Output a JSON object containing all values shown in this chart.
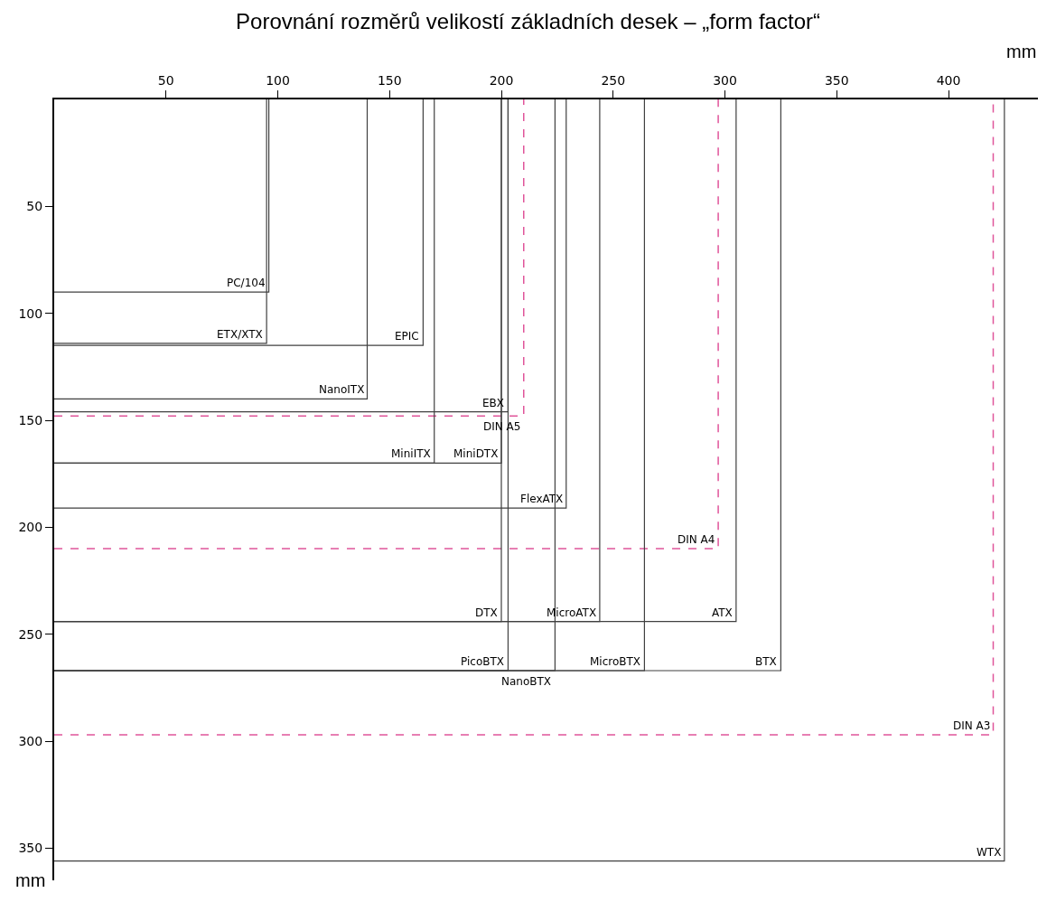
{
  "chart_data": {
    "type": "line",
    "title": "Porovnání rozměrů velikostí základních desek – „form factor“",
    "xlabel": "mm",
    "ylabel": "mm",
    "xlim": [
      0,
      440
    ],
    "ylim": [
      365,
      0
    ],
    "xticks": [
      50,
      100,
      150,
      200,
      250,
      300,
      350,
      400
    ],
    "yticks": [
      50,
      100,
      150,
      200,
      250,
      300,
      350
    ],
    "marker": "none",
    "series": [
      {
        "color": "#404040",
        "line_style": "solid",
        "x": [
          0,
          96,
          96
        ],
        "values": [
          90,
          90,
          0
        ]
      },
      {
        "color": "#404040",
        "line_style": "solid",
        "x": [
          0,
          95,
          95
        ],
        "values": [
          114,
          114,
          0
        ]
      },
      {
        "color": "#404040",
        "line_style": "solid",
        "x": [
          0,
          165,
          165
        ],
        "values": [
          115,
          115,
          0
        ]
      },
      {
        "color": "#404040",
        "line_style": "solid",
        "x": [
          0,
          140,
          140
        ],
        "values": [
          140,
          140,
          0
        ]
      },
      {
        "color": "#404040",
        "line_style": "solid",
        "x": [
          0,
          203,
          203
        ],
        "values": [
          146,
          146,
          0
        ]
      },
      {
        "color": "#e0559a",
        "line_style": "dashed",
        "x": [
          0,
          210,
          210
        ],
        "values": [
          148,
          148,
          0
        ]
      },
      {
        "color": "#404040",
        "line_style": "solid",
        "x": [
          0,
          170,
          170
        ],
        "values": [
          170,
          170,
          0
        ]
      },
      {
        "color": "#404040",
        "line_style": "solid",
        "x": [
          0,
          200,
          200
        ],
        "values": [
          170,
          170,
          0
        ]
      },
      {
        "color": "#404040",
        "line_style": "solid",
        "x": [
          0,
          229,
          229
        ],
        "values": [
          191,
          191,
          0
        ]
      },
      {
        "color": "#e0559a",
        "line_style": "dashed",
        "x": [
          0,
          297,
          297
        ],
        "values": [
          210,
          210,
          0
        ]
      },
      {
        "color": "#404040",
        "line_style": "solid",
        "x": [
          0,
          200,
          200
        ],
        "values": [
          244,
          244,
          0
        ]
      },
      {
        "color": "#404040",
        "line_style": "solid",
        "x": [
          0,
          244,
          244
        ],
        "values": [
          244,
          244,
          0
        ]
      },
      {
        "color": "#404040",
        "line_style": "solid",
        "x": [
          0,
          305,
          305
        ],
        "values": [
          244,
          244,
          0
        ]
      },
      {
        "color": "#404040",
        "line_style": "solid",
        "x": [
          0,
          203,
          203
        ],
        "values": [
          267,
          267,
          0
        ]
      },
      {
        "color": "#404040",
        "line_style": "solid",
        "x": [
          0,
          224,
          224
        ],
        "values": [
          267,
          267,
          0
        ]
      },
      {
        "color": "#404040",
        "line_style": "solid",
        "x": [
          0,
          264,
          264
        ],
        "values": [
          267,
          267,
          0
        ]
      },
      {
        "color": "#404040",
        "line_style": "solid",
        "x": [
          0,
          325,
          325
        ],
        "values": [
          267,
          267,
          0
        ]
      },
      {
        "color": "#e0559a",
        "line_style": "dashed",
        "x": [
          0,
          420,
          420
        ],
        "values": [
          297,
          297,
          0
        ]
      },
      {
        "color": "#404040",
        "line_style": "solid",
        "x": [
          0,
          425,
          425
        ],
        "values": [
          356,
          356,
          0
        ]
      }
    ],
    "annotations": [
      {
        "text": "PC/104",
        "x": 96,
        "y": 90
      },
      {
        "text": "ETX/XTX",
        "x": 95,
        "y": 114
      },
      {
        "text": "EPIC",
        "x": 165,
        "y": 115
      },
      {
        "text": "NanoITX",
        "x": 140,
        "y": 140
      },
      {
        "text": "EBX",
        "x": 203,
        "y": 146
      },
      {
        "text": "DIN A5",
        "x": 210,
        "y": 148
      },
      {
        "text": "MiniITX",
        "x": 170,
        "y": 170
      },
      {
        "text": "MiniDTX",
        "x": 200,
        "y": 170
      },
      {
        "text": "FlexATX",
        "x": 229,
        "y": 191
      },
      {
        "text": "DIN A4",
        "x": 297,
        "y": 210
      },
      {
        "text": "DTX",
        "x": 200,
        "y": 244
      },
      {
        "text": "MicroATX",
        "x": 244,
        "y": 244
      },
      {
        "text": "ATX",
        "x": 305,
        "y": 244
      },
      {
        "text": "PicoBTX",
        "x": 203,
        "y": 267
      },
      {
        "text": "NanoBTX",
        "x": 224,
        "y": 267
      },
      {
        "text": "MicroBTX",
        "x": 264,
        "y": 267
      },
      {
        "text": "BTX",
        "x": 325,
        "y": 267
      },
      {
        "text": "DIN A3",
        "x": 420,
        "y": 297
      },
      {
        "text": "WTX",
        "x": 425,
        "y": 356
      }
    ]
  }
}
